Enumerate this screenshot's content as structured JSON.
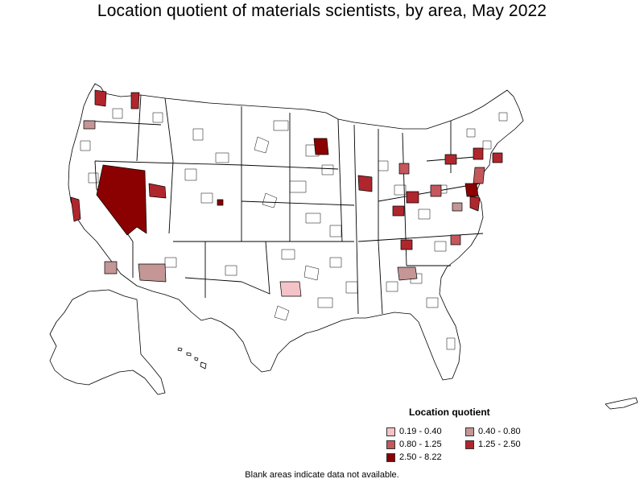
{
  "title": "Location quotient of materials scientists, by area, May 2022",
  "legend": {
    "title": "Location quotient",
    "items": [
      {
        "label": "0.19 - 0.40",
        "color": "#f4c3c8"
      },
      {
        "label": "0.40 - 0.80",
        "color": "#c49696"
      },
      {
        "label": "0.80 - 1.25",
        "color": "#c4575c"
      },
      {
        "label": "1.25 - 2.50",
        "color": "#b0262d"
      },
      {
        "label": "2.50 - 8.22",
        "color": "#8b0000"
      }
    ]
  },
  "footnote": "Blank areas indicate data not available."
}
